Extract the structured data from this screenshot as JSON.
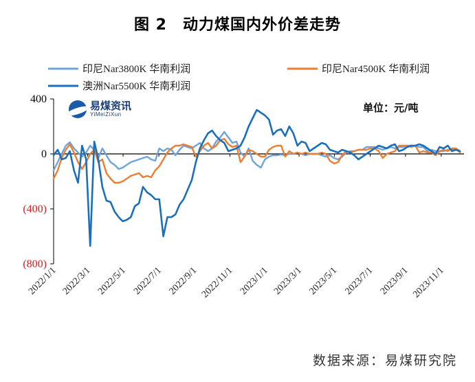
{
  "chart_data": {
    "type": "line",
    "title": "图 2　动力煤国内外价差走势",
    "unit_label": "单位：元/吨",
    "source": "数据来源：易煤研究院",
    "watermark": {
      "main": "易煤资讯",
      "sub": "YiMeiZiXun"
    },
    "ylim": [
      -800,
      400
    ],
    "yticks": [
      {
        "value": 400,
        "label": "400",
        "color": "#000000"
      },
      {
        "value": 0,
        "label": "0",
        "color": "#000000"
      },
      {
        "value": -400,
        "label": "(400)",
        "color": "#d11f1f"
      },
      {
        "value": -800,
        "label": "(800)",
        "color": "#d11f1f"
      }
    ],
    "xlim": [
      0,
      101
    ],
    "xticks": [
      {
        "index": 0,
        "label": "2022/1/1"
      },
      {
        "index": 8.4,
        "label": "2022/3/1"
      },
      {
        "index": 17.1,
        "label": "2022/5/1"
      },
      {
        "index": 25.9,
        "label": "2022/7/1"
      },
      {
        "index": 34.6,
        "label": "2022/9/1"
      },
      {
        "index": 43.4,
        "label": "2022/11/1"
      },
      {
        "index": 52.1,
        "label": "2023/1/1"
      },
      {
        "index": 60.4,
        "label": "2023/3/1"
      },
      {
        "index": 69.1,
        "label": "2023/5/1"
      },
      {
        "index": 77.9,
        "label": "2023/7/1"
      },
      {
        "index": 86.6,
        "label": "2023/9/1"
      },
      {
        "index": 95.4,
        "label": "2023/11/1"
      }
    ],
    "series": [
      {
        "name": "印尼Nar3800K 华南利润",
        "color": "#6fa3dc",
        "values": [
          -120,
          -60,
          0,
          60,
          85,
          40,
          10,
          -20,
          10,
          60,
          30,
          -30,
          40,
          -10,
          -60,
          -80,
          -110,
          -100,
          -80,
          -60,
          -50,
          -40,
          -30,
          -20,
          -40,
          -50,
          40,
          20,
          40,
          30,
          -10,
          30,
          60,
          50,
          40,
          60,
          80,
          40,
          20,
          40,
          90,
          120,
          160,
          120,
          80,
          90,
          10,
          -20,
          40,
          -50,
          -80,
          -100,
          -40,
          -20,
          -10,
          -10,
          -5,
          -10,
          0,
          0,
          10,
          0,
          -10,
          0,
          0,
          0,
          -10,
          -20,
          -10,
          -30,
          -40,
          -20,
          10,
          20,
          20,
          30,
          30,
          50,
          50,
          50,
          40,
          30,
          40,
          50,
          40,
          50,
          50,
          60,
          60,
          60,
          50,
          50,
          20,
          30,
          20,
          20,
          20,
          30,
          30,
          40,
          20
        ]
      },
      {
        "name": "印尼Nar4500K 华南利润",
        "color": "#ed7d31",
        "values": [
          -180,
          -120,
          -30,
          30,
          70,
          10,
          -60,
          -110,
          -60,
          0,
          30,
          -60,
          -40,
          -140,
          -180,
          -210,
          -210,
          -200,
          -180,
          -160,
          -150,
          -140,
          -170,
          -160,
          -170,
          -120,
          -90,
          -40,
          10,
          40,
          60,
          60,
          70,
          60,
          50,
          -20,
          20,
          60,
          80,
          40,
          60,
          100,
          110,
          70,
          50,
          60,
          -60,
          -20,
          30,
          20,
          0,
          -20,
          -20,
          30,
          50,
          60,
          60,
          -20,
          20,
          0,
          10,
          0,
          10,
          0,
          0,
          0,
          10,
          0,
          -50,
          -70,
          -60,
          -10,
          20,
          10,
          20,
          30,
          30,
          30,
          40,
          40,
          20,
          -30,
          0,
          10,
          20,
          60,
          60,
          60,
          50,
          60,
          10,
          20,
          10,
          10,
          -10,
          20,
          30,
          20,
          40,
          40,
          10
        ]
      },
      {
        "name": "澳洲Nar5500K 华南利润",
        "color": "#1a6fbd",
        "values": [
          -10,
          30,
          -40,
          -30,
          20,
          -120,
          -210,
          60,
          -40,
          -670,
          90,
          -40,
          -240,
          -340,
          -350,
          -420,
          -460,
          -490,
          -480,
          -460,
          -380,
          -360,
          -240,
          -280,
          -300,
          -330,
          -330,
          -600,
          -460,
          -460,
          -440,
          -370,
          -330,
          -260,
          -190,
          -60,
          40,
          100,
          150,
          170,
          130,
          100,
          80,
          20,
          30,
          40,
          60,
          120,
          200,
          260,
          320,
          300,
          280,
          250,
          140,
          170,
          180,
          130,
          200,
          150,
          60,
          90,
          80,
          20,
          40,
          60,
          80,
          70,
          30,
          20,
          10,
          30,
          20,
          10,
          -10,
          -40,
          -20,
          0,
          20,
          40,
          60,
          50,
          40,
          60,
          70,
          20,
          30,
          50,
          60,
          60,
          70,
          60,
          40,
          20,
          0,
          50,
          40,
          60,
          20,
          30,
          20
        ]
      }
    ]
  }
}
